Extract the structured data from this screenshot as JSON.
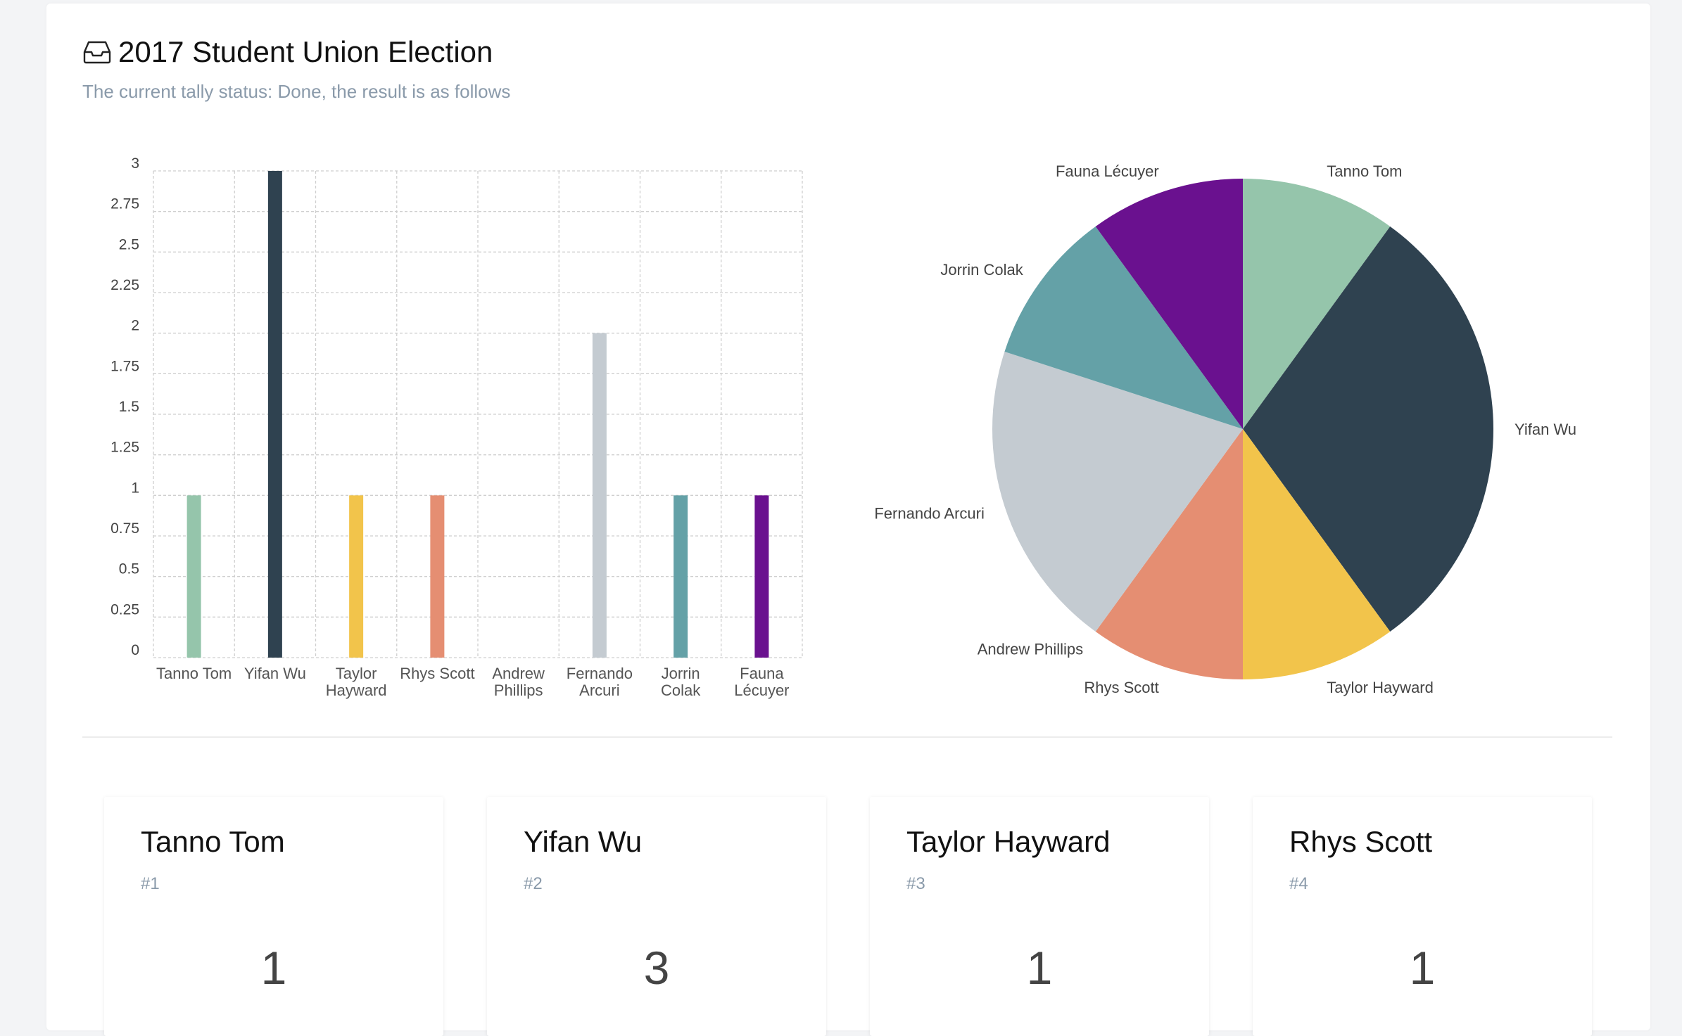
{
  "header": {
    "icon": "inbox-icon",
    "title": "2017 Student Union Election",
    "subtitle": "The current tally status: Done, the result is as follows"
  },
  "chart_data": [
    {
      "type": "bar",
      "categories": [
        "Tanno Tom",
        "Yifan Wu",
        "Taylor Hayward",
        "Rhys Scott",
        "Andrew Phillips",
        "Fernando Arcuri",
        "Jorrin Colak",
        "Fauna Lécuyer"
      ],
      "category_labels": [
        [
          "Tanno Tom"
        ],
        [
          "Yifan Wu"
        ],
        [
          "Taylor",
          "Hayward"
        ],
        [
          "Rhys Scott"
        ],
        [
          "Andrew",
          "Phillips"
        ],
        [
          "Fernando",
          "Arcuri"
        ],
        [
          "Jorrin",
          "Colak"
        ],
        [
          "Fauna",
          "Lécuyer"
        ]
      ],
      "values": [
        1,
        3,
        1,
        1,
        0,
        2,
        1,
        1
      ],
      "colors": [
        "#95c5ab",
        "#2f4250",
        "#f2c44b",
        "#e58e72",
        "#9aa5ad",
        "#c4cbd1",
        "#64a1a7",
        "#6a118f"
      ],
      "ylim": [
        0,
        3
      ],
      "yticks": [
        "0",
        "0.25",
        "0.5",
        "0.75",
        "1",
        "1.25",
        "1.5",
        "1.75",
        "2",
        "2.25",
        "2.5",
        "2.75",
        "3"
      ],
      "grid": true
    },
    {
      "type": "pie",
      "labels": [
        "Tanno Tom",
        "Yifan Wu",
        "Taylor Hayward",
        "Rhys Scott",
        "Andrew Phillips",
        "Fernando Arcuri",
        "Jorrin Colak",
        "Fauna Lécuyer"
      ],
      "values": [
        1,
        3,
        1,
        1,
        0,
        2,
        1,
        1
      ],
      "colors": [
        "#95c5ab",
        "#2f4250",
        "#f2c44b",
        "#e58e72",
        "#9aa5ad",
        "#c4cbd1",
        "#64a1a7",
        "#6a118f"
      ]
    }
  ],
  "cards": [
    {
      "name": "Tanno Tom",
      "rank": "#1",
      "votes": "1"
    },
    {
      "name": "Yifan Wu",
      "rank": "#2",
      "votes": "3"
    },
    {
      "name": "Taylor Hayward",
      "rank": "#3",
      "votes": "1"
    },
    {
      "name": "Rhys Scott",
      "rank": "#4",
      "votes": "1"
    }
  ]
}
